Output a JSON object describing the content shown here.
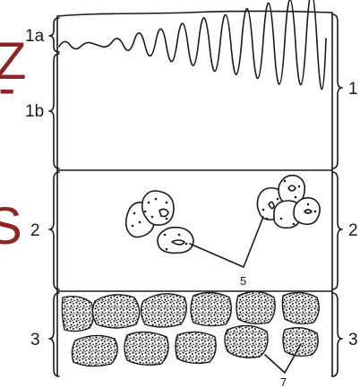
{
  "edge_fragments": [
    "Z",
    "-",
    "S"
  ],
  "left_labels": [
    {
      "id": "1a",
      "text": "1a"
    },
    {
      "id": "1b",
      "text": "1b"
    },
    {
      "id": "2",
      "text": "2"
    },
    {
      "id": "3",
      "text": "3"
    }
  ],
  "right_labels": [
    {
      "id": "1",
      "text": "1"
    },
    {
      "id": "2",
      "text": "2"
    },
    {
      "id": "3",
      "text": "3"
    }
  ],
  "callouts": [
    {
      "id": "5",
      "text": "5"
    },
    {
      "id": "7",
      "text": "7"
    }
  ]
}
